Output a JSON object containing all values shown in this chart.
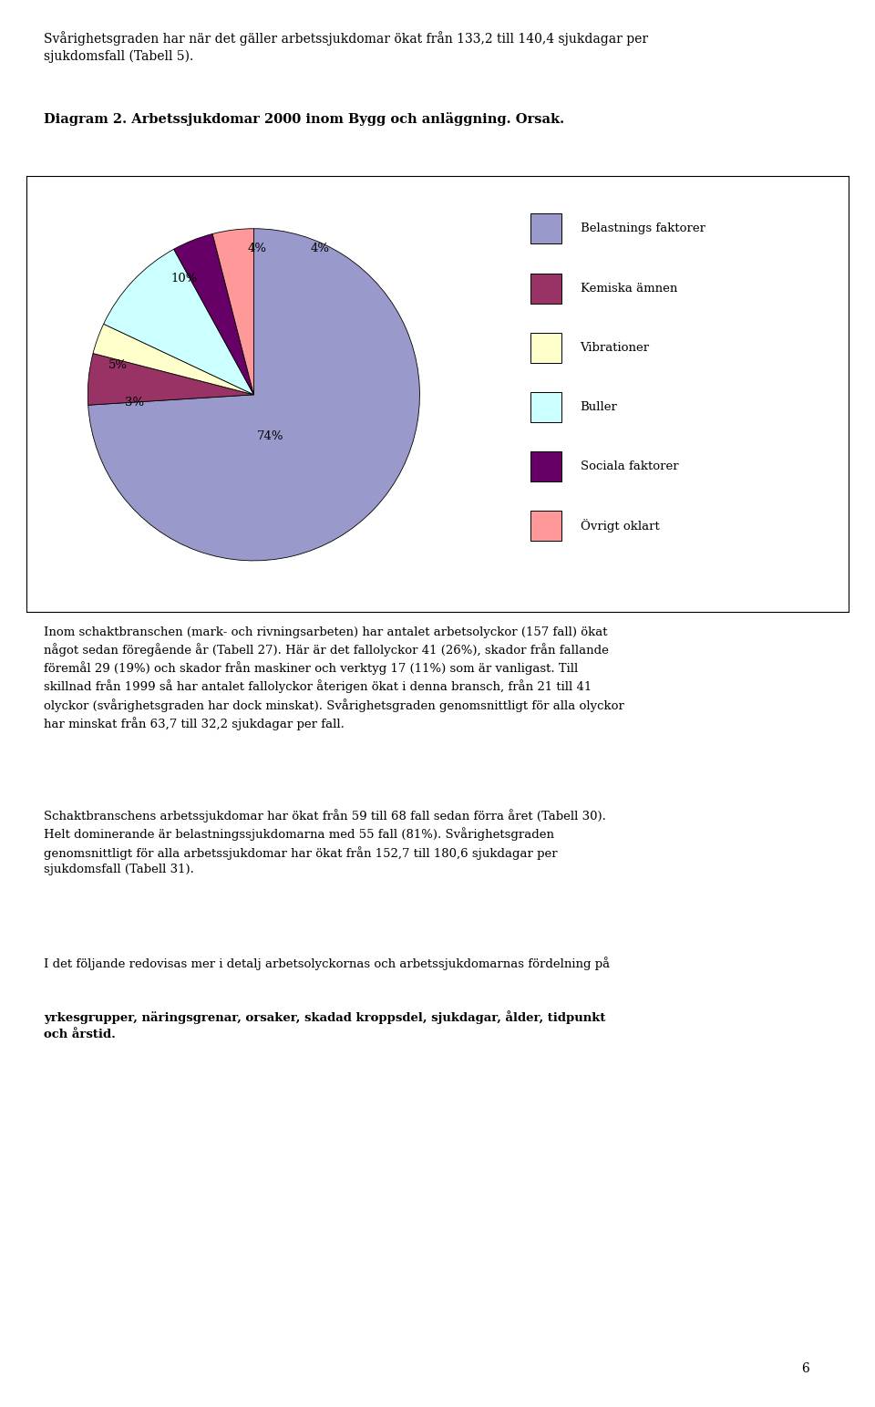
{
  "title": "Diagram 2. Arbetssjukdomar 2000 inom Bygg och anläggning. Orsak.",
  "slices": [
    74,
    5,
    3,
    10,
    4,
    4
  ],
  "legend_labels": [
    "Belastnings faktorer",
    "Kemiska ämnen",
    "Vibrationer",
    "Buller",
    "Sociala faktorer",
    "Övrigt oklart"
  ],
  "colors": [
    "#9999cc",
    "#993366",
    "#ffffcc",
    "#ccffff",
    "#660066",
    "#ff9999"
  ],
  "startangle": 90,
  "header_line1": "Svårighetsgraden har när det gäller arbetssjukdomar ökat från 133,2 till 140,4 sjukdagar per",
  "header_line2": "sjukdomsfall (Tabell 5).",
  "para1_lines": [
    "Inom schaktbranschen (mark- och rivningsarbeten) har antalet arbetsolyckor (157 fall) ökat",
    "något sedan föregående år (Tabell 27). Här är det fallolyckor 41 (26%), skador från fallande",
    "föremål 29 (19%) och skador från maskiner och verktyg 17 (11%) som är vanligast. Till",
    "skillnad från 1999 så har antalet fallolyckor återigen ökat i denna bransch, från 21 till 41",
    "olyckor (svårighetsgraden har dock minskat). Svårighetsgraden genomsnittligt för alla olyckor",
    "har minskat från 63,7 till 32,2 sjukdagar per fall."
  ],
  "para2_lines": [
    "Schaktbranschens arbetssjukdomar har ökat från 59 till 68 fall sedan förra året (Tabell 30).",
    "Helt dominerande är belastningssjukdomarna med 55 fall (81%). Svårighetsgraden",
    "genomsnittligt för alla arbetssjukdomar har ökat från 152,7 till 180,6 sjukdagar per",
    "sjukdomsfall (Tabell 31)."
  ],
  "para3_normal": "I det följande redovisas mer i detalj arbetsolyckornas och arbetssjukdomarnas fördelning på",
  "para3_bold_lines": [
    "yrkesgrupper, näringsgrenar, orsaker, skadad kroppsdel, sjukdagar, ålder, tidpunkt",
    "och årstid."
  ],
  "page_number": "6",
  "label_74": "74%",
  "label_5": "5%",
  "label_3": "3%",
  "label_10": "10%",
  "label_4a": "4%",
  "label_4b": "4%"
}
